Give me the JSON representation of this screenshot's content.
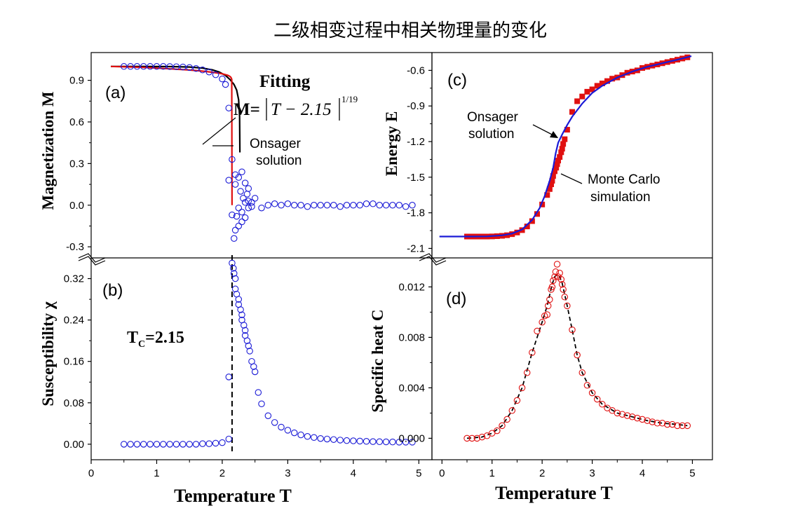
{
  "title": "二级相变过程中相关物理量的变化",
  "xlabel": "Temperature T",
  "colors": {
    "blue": "#1a1ad6",
    "red": "#e01010",
    "black": "#000000"
  },
  "annotations": {
    "label_a": "(a)",
    "label_b": "(b)",
    "label_c": "(c)",
    "label_d": "(d)",
    "fitting": "Fitting",
    "formula_lhs": "M=",
    "formula_body": "T − 2.15",
    "formula_exp": "1/19",
    "onsager_a_1": "Onsager",
    "onsager_a_2": "solution",
    "onsager_c_1": "Onsager",
    "onsager_c_2": "solution",
    "mc_1": "Monte Carlo",
    "mc_2": "simulation",
    "tc_prefix": "T",
    "tc_sub": "C",
    "tc_value": "=2.15"
  },
  "chart_data": [
    {
      "id": "a",
      "type": "scatter",
      "ylabel": "Magnetization M",
      "xlim": [
        0,
        5.2
      ],
      "ylim": [
        -0.38,
        1.1
      ],
      "yticks": [
        "-0.3",
        "0.0",
        "0.3",
        "0.6",
        "0.9"
      ],
      "series": [
        {
          "type": "scatter",
          "marker": "circle-open",
          "color": "#1a1ad6",
          "x": [
            0.5,
            0.6,
            0.7,
            0.8,
            0.9,
            1.0,
            1.1,
            1.2,
            1.3,
            1.4,
            1.5,
            1.6,
            1.7,
            1.8,
            1.9,
            2.0,
            2.05,
            2.1,
            2.1,
            2.15,
            2.15,
            2.18,
            2.2,
            2.2,
            2.2,
            2.22,
            2.25,
            2.25,
            2.25,
            2.28,
            2.3,
            2.3,
            2.3,
            2.32,
            2.35,
            2.35,
            2.35,
            2.38,
            2.4,
            2.4,
            2.4,
            2.45,
            2.45,
            2.5,
            2.6,
            2.7,
            2.8,
            2.9,
            3.0,
            3.1,
            3.2,
            3.3,
            3.4,
            3.5,
            3.6,
            3.7,
            3.8,
            3.9,
            4.0,
            4.1,
            4.2,
            4.3,
            4.4,
            4.5,
            4.6,
            4.7,
            4.8,
            4.9
          ],
          "y": [
            1.0,
            1.0,
            1.0,
            1.0,
            1.0,
            1.0,
            1.0,
            0.999,
            0.998,
            0.996,
            0.992,
            0.985,
            0.975,
            0.96,
            0.94,
            0.91,
            0.87,
            0.7,
            0.18,
            0.33,
            -0.07,
            -0.24,
            0.22,
            0.15,
            -0.18,
            -0.08,
            0.2,
            -0.02,
            -0.15,
            0.1,
            0.24,
            -0.12,
            -0.05,
            0.05,
            0.16,
            0.02,
            -0.09,
            0.08,
            0.12,
            -0.02,
            0.03,
            -0.01,
            0.02,
            0.05,
            -0.02,
            0.0,
            0.01,
            0.0,
            0.01,
            0.0,
            0.0,
            -0.01,
            0.0,
            0.0,
            0.0,
            0.0,
            -0.01,
            0.0,
            0.0,
            0.0,
            0.01,
            0.01,
            0.0,
            0.0,
            0.0,
            0.0,
            -0.01,
            0.0
          ]
        },
        {
          "type": "line",
          "name": "Onsager solution",
          "color": "#000000",
          "x": [
            0.3,
            0.8,
            1.2,
            1.5,
            1.7,
            1.85,
            1.95,
            2.05,
            2.12,
            2.18,
            2.22,
            2.25,
            2.265,
            2.269
          ],
          "y": [
            1.0,
            0.9999,
            0.9992,
            0.996,
            0.988,
            0.975,
            0.96,
            0.935,
            0.905,
            0.87,
            0.83,
            0.76,
            0.64,
            0.38
          ]
        },
        {
          "type": "line",
          "name": "Fitting",
          "color": "#e01010",
          "x": [
            0.3,
            0.8,
            1.2,
            1.5,
            1.7,
            1.85,
            1.95,
            2.0,
            2.05,
            2.08,
            2.1,
            2.12,
            2.13,
            2.14,
            2.145,
            2.15
          ],
          "y": [
            1.0,
            0.993,
            0.983,
            0.974,
            0.966,
            0.958,
            0.951,
            0.947,
            0.941,
            0.937,
            0.933,
            0.927,
            0.922,
            0.914,
            0.907,
            0.0
          ]
        }
      ]
    },
    {
      "id": "b",
      "type": "scatter",
      "ylabel": "Susceptibility χ",
      "xlim": [
        0,
        5.2
      ],
      "ylim": [
        -0.03,
        0.36
      ],
      "yticks": [
        "0.00",
        "0.08",
        "0.16",
        "0.24",
        "0.32"
      ],
      "vline_x": 2.15,
      "series": [
        {
          "type": "scatter",
          "marker": "circle-open",
          "color": "#1a1ad6",
          "x": [
            0.5,
            0.6,
            0.7,
            0.8,
            0.9,
            1.0,
            1.1,
            1.2,
            1.3,
            1.4,
            1.5,
            1.6,
            1.7,
            1.8,
            1.9,
            2.0,
            2.1,
            2.1,
            2.15,
            2.17,
            2.18,
            2.2,
            2.2,
            2.22,
            2.25,
            2.25,
            2.28,
            2.3,
            2.3,
            2.33,
            2.35,
            2.35,
            2.38,
            2.4,
            2.42,
            2.45,
            2.48,
            2.5,
            2.55,
            2.6,
            2.7,
            2.8,
            2.9,
            3.0,
            3.1,
            3.2,
            3.3,
            3.4,
            3.5,
            3.6,
            3.7,
            3.8,
            3.9,
            4.0,
            4.1,
            4.2,
            4.3,
            4.4,
            4.5,
            4.6,
            4.7,
            4.8,
            4.9
          ],
          "y": [
            0.0,
            0.0,
            0.0,
            0.0,
            0.0,
            0.0,
            0.0,
            0.0,
            0.0,
            0.0,
            0.0,
            0.0,
            0.001,
            0.001,
            0.002,
            0.003,
            0.01,
            0.13,
            0.35,
            0.34,
            0.33,
            0.32,
            0.3,
            0.29,
            0.28,
            0.27,
            0.26,
            0.25,
            0.24,
            0.23,
            0.22,
            0.21,
            0.2,
            0.19,
            0.18,
            0.16,
            0.15,
            0.14,
            0.1,
            0.078,
            0.055,
            0.042,
            0.033,
            0.027,
            0.022,
            0.018,
            0.015,
            0.013,
            0.011,
            0.01,
            0.009,
            0.008,
            0.007,
            0.0065,
            0.006,
            0.0055,
            0.005,
            0.0048,
            0.0045,
            0.0043,
            0.004,
            0.004,
            0.004
          ]
        }
      ]
    },
    {
      "id": "c",
      "type": "scatter",
      "ylabel": "Energy E",
      "xlim": [
        -0.2,
        5.4
      ],
      "ylim": [
        -2.18,
        -0.45
      ],
      "yticks": [
        "-2.1",
        "-1.8",
        "-1.5",
        "-1.2",
        "-0.9",
        "-0.6"
      ],
      "series": [
        {
          "type": "scatter",
          "marker": "square",
          "color": "#e01010",
          "name": "Monte Carlo simulation",
          "x": [
            0.5,
            0.6,
            0.7,
            0.8,
            0.9,
            1.0,
            1.1,
            1.2,
            1.3,
            1.4,
            1.5,
            1.6,
            1.7,
            1.8,
            1.9,
            2.0,
            2.1,
            2.15,
            2.18,
            2.2,
            2.22,
            2.25,
            2.28,
            2.3,
            2.32,
            2.35,
            2.38,
            2.4,
            2.42,
            2.45,
            2.5,
            2.6,
            2.7,
            2.8,
            2.9,
            3.0,
            3.1,
            3.2,
            3.3,
            3.4,
            3.5,
            3.6,
            3.7,
            3.8,
            3.9,
            4.0,
            4.1,
            4.2,
            4.3,
            4.4,
            4.5,
            4.6,
            4.7,
            4.8,
            4.9
          ],
          "y": [
            -2.0,
            -2.0,
            -2.0,
            -2.0,
            -2.0,
            -1.999,
            -1.997,
            -1.994,
            -1.989,
            -1.98,
            -1.966,
            -1.946,
            -1.915,
            -1.87,
            -1.81,
            -1.73,
            -1.65,
            -1.6,
            -1.56,
            -1.53,
            -1.49,
            -1.45,
            -1.42,
            -1.39,
            -1.36,
            -1.33,
            -1.29,
            -1.26,
            -1.22,
            -1.18,
            -1.1,
            -0.95,
            -0.86,
            -0.82,
            -0.78,
            -0.76,
            -0.73,
            -0.71,
            -0.69,
            -0.67,
            -0.66,
            -0.64,
            -0.62,
            -0.61,
            -0.6,
            -0.58,
            -0.57,
            -0.56,
            -0.55,
            -0.54,
            -0.53,
            -0.52,
            -0.51,
            -0.5,
            -0.49
          ]
        },
        {
          "type": "line",
          "name": "Onsager solution",
          "color": "#1a1ad6",
          "x": [
            -0.05,
            0.3,
            0.6,
            0.9,
            1.2,
            1.4,
            1.6,
            1.8,
            1.95,
            2.05,
            2.15,
            2.22,
            2.269,
            2.32,
            2.4,
            2.5,
            2.6,
            2.8,
            3.0,
            3.2,
            3.5,
            3.8,
            4.1,
            4.4,
            4.7,
            4.98
          ],
          "y": [
            -2.0,
            -2.0,
            -2.0,
            -1.999,
            -1.99,
            -1.975,
            -1.94,
            -1.86,
            -1.76,
            -1.66,
            -1.53,
            -1.42,
            -1.3,
            -1.21,
            -1.14,
            -1.06,
            -0.99,
            -0.88,
            -0.79,
            -0.73,
            -0.66,
            -0.61,
            -0.57,
            -0.54,
            -0.51,
            -0.48
          ]
        }
      ]
    },
    {
      "id": "d",
      "type": "scatter",
      "ylabel": "Specific heat C",
      "xlim": [
        -0.2,
        5.4
      ],
      "ylim": [
        -0.0017,
        0.0143
      ],
      "yticks": [
        "0.000",
        "0.004",
        "0.008",
        "0.012"
      ],
      "series": [
        {
          "type": "scatter",
          "marker": "circle-open",
          "color": "#e01010",
          "x": [
            0.5,
            0.6,
            0.7,
            0.8,
            0.9,
            1.0,
            1.1,
            1.2,
            1.3,
            1.4,
            1.5,
            1.6,
            1.7,
            1.8,
            1.9,
            2.0,
            2.05,
            2.1,
            2.12,
            2.15,
            2.18,
            2.2,
            2.22,
            2.25,
            2.27,
            2.3,
            2.32,
            2.35,
            2.38,
            2.4,
            2.42,
            2.45,
            2.5,
            2.6,
            2.7,
            2.8,
            2.9,
            3.0,
            3.1,
            3.2,
            3.3,
            3.4,
            3.5,
            3.6,
            3.7,
            3.8,
            3.9,
            4.0,
            4.1,
            4.2,
            4.3,
            4.4,
            4.5,
            4.6,
            4.7,
            4.8,
            4.9
          ],
          "y": [
            0.0,
            0.0,
            0.0,
            0.0001,
            0.0002,
            0.0004,
            0.0006,
            0.001,
            0.0015,
            0.0022,
            0.003,
            0.004,
            0.0052,
            0.0068,
            0.0085,
            0.0092,
            0.0097,
            0.0098,
            0.0105,
            0.011,
            0.0118,
            0.012,
            0.0125,
            0.0128,
            0.0132,
            0.0138,
            0.0128,
            0.0131,
            0.0126,
            0.0122,
            0.0118,
            0.0112,
            0.0105,
            0.0086,
            0.0066,
            0.0052,
            0.0042,
            0.0036,
            0.0031,
            0.0027,
            0.0024,
            0.0022,
            0.002,
            0.0019,
            0.0018,
            0.0017,
            0.0016,
            0.0015,
            0.0014,
            0.0013,
            0.0012,
            0.0012,
            0.0011,
            0.0011,
            0.001,
            0.001,
            0.001
          ]
        },
        {
          "type": "line",
          "style": "dashed",
          "color": "#000000",
          "x": [
            0.5,
            0.8,
            1.0,
            1.2,
            1.4,
            1.6,
            1.8,
            2.0,
            2.1,
            2.2,
            2.25,
            2.3,
            2.35,
            2.4,
            2.5,
            2.6,
            2.7,
            2.8,
            3.0,
            3.2,
            3.5,
            3.8,
            4.1,
            4.4,
            4.7,
            4.9
          ],
          "y": [
            0.0,
            0.0001,
            0.0004,
            0.001,
            0.0022,
            0.004,
            0.0068,
            0.0092,
            0.0105,
            0.0122,
            0.0128,
            0.013,
            0.0128,
            0.0123,
            0.0105,
            0.0086,
            0.0066,
            0.0052,
            0.0036,
            0.0027,
            0.002,
            0.0017,
            0.0014,
            0.0012,
            0.0011,
            0.001
          ]
        }
      ]
    }
  ],
  "xticks": [
    "0",
    "1",
    "2",
    "3",
    "4",
    "5"
  ]
}
